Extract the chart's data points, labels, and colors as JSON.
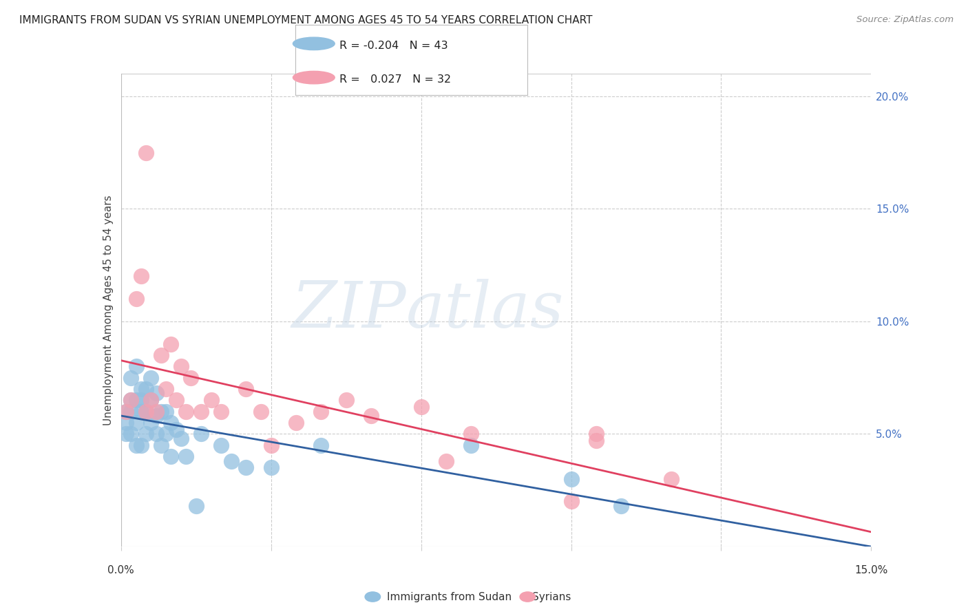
{
  "title": "IMMIGRANTS FROM SUDAN VS SYRIAN UNEMPLOYMENT AMONG AGES 45 TO 54 YEARS CORRELATION CHART",
  "source": "Source: ZipAtlas.com",
  "ylabel": "Unemployment Among Ages 45 to 54 years",
  "xlim": [
    0.0,
    0.15
  ],
  "ylim": [
    0.0,
    0.21
  ],
  "yticks": [
    0.0,
    0.05,
    0.1,
    0.15,
    0.2
  ],
  "ytick_labels": [
    "",
    "5.0%",
    "10.0%",
    "15.0%",
    "20.0%"
  ],
  "legend_blue_r": "-0.204",
  "legend_blue_n": "43",
  "legend_pink_r": "0.027",
  "legend_pink_n": "32",
  "legend_label_blue": "Immigrants from Sudan",
  "legend_label_pink": "Syrians",
  "blue_color": "#92C0E0",
  "pink_color": "#F4A0B0",
  "blue_line_color": "#3060A0",
  "pink_line_color": "#E04060",
  "watermark_zip": "ZIP",
  "watermark_atlas": "atlas",
  "sudan_x": [
    0.001,
    0.001,
    0.001,
    0.002,
    0.002,
    0.002,
    0.002,
    0.003,
    0.003,
    0.003,
    0.003,
    0.004,
    0.004,
    0.004,
    0.004,
    0.005,
    0.005,
    0.005,
    0.006,
    0.006,
    0.006,
    0.007,
    0.007,
    0.007,
    0.008,
    0.008,
    0.009,
    0.009,
    0.01,
    0.01,
    0.011,
    0.012,
    0.013,
    0.015,
    0.016,
    0.02,
    0.022,
    0.025,
    0.03,
    0.04,
    0.07,
    0.09,
    0.1
  ],
  "sudan_y": [
    0.06,
    0.055,
    0.05,
    0.075,
    0.065,
    0.06,
    0.05,
    0.08,
    0.065,
    0.055,
    0.045,
    0.07,
    0.065,
    0.06,
    0.045,
    0.07,
    0.06,
    0.05,
    0.075,
    0.065,
    0.055,
    0.068,
    0.058,
    0.05,
    0.06,
    0.045,
    0.06,
    0.05,
    0.055,
    0.04,
    0.052,
    0.048,
    0.04,
    0.018,
    0.05,
    0.045,
    0.038,
    0.035,
    0.035,
    0.045,
    0.045,
    0.03,
    0.018
  ],
  "syrian_x": [
    0.001,
    0.002,
    0.003,
    0.004,
    0.005,
    0.005,
    0.006,
    0.007,
    0.008,
    0.009,
    0.01,
    0.011,
    0.012,
    0.013,
    0.014,
    0.016,
    0.018,
    0.02,
    0.025,
    0.028,
    0.03,
    0.035,
    0.04,
    0.045,
    0.05,
    0.06,
    0.065,
    0.07,
    0.09,
    0.095,
    0.095,
    0.11
  ],
  "syrian_y": [
    0.06,
    0.065,
    0.11,
    0.12,
    0.175,
    0.06,
    0.065,
    0.06,
    0.085,
    0.07,
    0.09,
    0.065,
    0.08,
    0.06,
    0.075,
    0.06,
    0.065,
    0.06,
    0.07,
    0.06,
    0.045,
    0.055,
    0.06,
    0.065,
    0.058,
    0.062,
    0.038,
    0.05,
    0.02,
    0.05,
    0.047,
    0.03
  ]
}
